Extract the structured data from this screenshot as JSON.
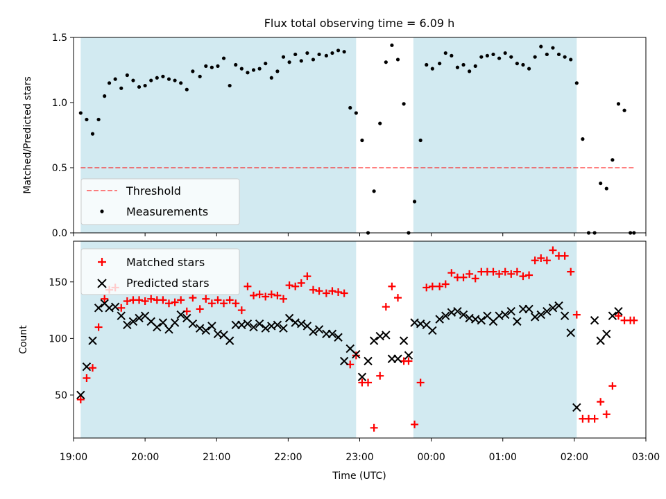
{
  "chart_data": [
    {
      "type": "scatter",
      "title": "Flux total observing time = 6.09 h",
      "ylabel": "Matched/Predicted stars",
      "xlim": [
        "19:00",
        "03:00"
      ],
      "ylim": [
        0,
        1.5
      ],
      "y_ticks": [
        "0.0",
        "0.5",
        "1.0",
        "1.5"
      ],
      "shaded_intervals": [
        [
          "19:06",
          "22:57"
        ],
        [
          "23:45",
          "02:02"
        ]
      ],
      "threshold": {
        "value": 0.5,
        "x_start": "19:06",
        "x_end": "02:50"
      },
      "legend": {
        "location": "lower-left",
        "entries": [
          "Threshold",
          "Measurements"
        ]
      },
      "series": [
        {
          "name": "Measurements",
          "x": [
            "19:06",
            "19:11",
            "19:16",
            "19:21",
            "19:26",
            "19:30",
            "19:35",
            "19:40",
            "19:45",
            "19:50",
            "19:55",
            "20:00",
            "20:05",
            "20:10",
            "20:15",
            "20:20",
            "20:25",
            "20:30",
            "20:35",
            "20:40",
            "20:46",
            "20:51",
            "20:56",
            "21:01",
            "21:06",
            "21:11",
            "21:16",
            "21:21",
            "21:26",
            "21:31",
            "21:36",
            "21:41",
            "21:46",
            "21:51",
            "21:56",
            "22:01",
            "22:06",
            "22:11",
            "22:16",
            "22:21",
            "22:26",
            "22:32",
            "22:37",
            "22:42",
            "22:47",
            "22:52",
            "22:57",
            "23:02",
            "23:07",
            "23:12",
            "23:17",
            "23:22",
            "23:27",
            "23:32",
            "23:37",
            "23:41",
            "23:46",
            "23:51",
            "23:56",
            "00:01",
            "00:07",
            "00:12",
            "00:17",
            "00:22",
            "00:27",
            "00:32",
            "00:37",
            "00:42",
            "00:47",
            "00:52",
            "00:57",
            "01:02",
            "01:07",
            "01:12",
            "01:17",
            "01:22",
            "01:27",
            "01:32",
            "01:37",
            "01:42",
            "01:47",
            "01:52",
            "01:57",
            "02:02",
            "02:07",
            "02:12",
            "02:17",
            "02:22",
            "02:27",
            "02:32",
            "02:37",
            "02:42",
            "02:47",
            "02:50"
          ],
          "y": [
            0.92,
            0.87,
            0.76,
            0.87,
            1.05,
            1.15,
            1.18,
            1.11,
            1.21,
            1.17,
            1.12,
            1.13,
            1.17,
            1.19,
            1.2,
            1.18,
            1.17,
            1.15,
            1.1,
            1.24,
            1.2,
            1.28,
            1.27,
            1.28,
            1.34,
            1.13,
            1.29,
            1.26,
            1.23,
            1.25,
            1.26,
            1.3,
            1.19,
            1.24,
            1.35,
            1.31,
            1.37,
            1.32,
            1.38,
            1.33,
            1.37,
            1.36,
            1.38,
            1.4,
            1.39,
            0.96,
            0.92,
            0.71,
            0.0,
            0.32,
            0.84,
            1.31,
            1.44,
            1.33,
            0.99,
            0.0,
            0.24,
            0.71,
            1.29,
            1.26,
            1.3,
            1.38,
            1.36,
            1.27,
            1.29,
            1.24,
            1.28,
            1.35,
            1.36,
            1.37,
            1.34,
            1.38,
            1.35,
            1.3,
            1.29,
            1.26,
            1.35,
            1.43,
            1.37,
            1.42,
            1.37,
            1.35,
            1.33,
            1.15,
            0.72,
            0.0,
            0.0,
            0.38,
            0.34,
            0.56,
            0.99,
            0.94,
            0.0,
            0.0
          ]
        }
      ]
    },
    {
      "type": "scatter",
      "xlabel": "Time (UTC)",
      "ylabel": "Count",
      "ylim": [
        12,
        186
      ],
      "y_ticks": [
        "50",
        "100",
        "150"
      ],
      "x_ticks": [
        "19:00",
        "20:00",
        "21:00",
        "22:00",
        "23:00",
        "00:00",
        "01:00",
        "02:00",
        "03:00"
      ],
      "legend": {
        "location": "upper-left",
        "entries": [
          "Matched stars",
          "Predicted stars"
        ]
      },
      "series": [
        {
          "name": "Matched stars",
          "color": "#ff0000",
          "marker": "plus",
          "x": [
            "19:06",
            "19:11",
            "19:16",
            "19:21",
            "19:26",
            "19:30",
            "19:35",
            "19:40",
            "19:45",
            "19:50",
            "19:55",
            "20:00",
            "20:05",
            "20:10",
            "20:15",
            "20:20",
            "20:25",
            "20:30",
            "20:35",
            "20:40",
            "20:46",
            "20:51",
            "20:56",
            "21:01",
            "21:06",
            "21:11",
            "21:16",
            "21:21",
            "21:26",
            "21:31",
            "21:36",
            "21:41",
            "21:46",
            "21:51",
            "21:56",
            "22:01",
            "22:06",
            "22:11",
            "22:16",
            "22:21",
            "22:26",
            "22:32",
            "22:37",
            "22:42",
            "22:47",
            "22:52",
            "22:57",
            "23:02",
            "23:07",
            "23:12",
            "23:17",
            "23:22",
            "23:27",
            "23:32",
            "23:37",
            "23:41",
            "23:46",
            "23:51",
            "23:56",
            "00:01",
            "00:07",
            "00:12",
            "00:17",
            "00:22",
            "00:27",
            "00:32",
            "00:37",
            "00:42",
            "00:47",
            "00:52",
            "00:57",
            "01:02",
            "01:07",
            "01:12",
            "01:17",
            "01:22",
            "01:27",
            "01:32",
            "01:37",
            "01:42",
            "01:47",
            "01:52",
            "01:57",
            "02:02",
            "02:07",
            "02:12",
            "02:17",
            "02:22",
            "02:27",
            "02:32",
            "02:37",
            "02:42",
            "02:47",
            "02:50"
          ],
          "y": [
            46,
            65,
            74,
            110,
            135,
            143,
            145,
            127,
            133,
            134,
            134,
            133,
            135,
            134,
            134,
            131,
            132,
            134,
            124,
            136,
            126,
            135,
            131,
            134,
            131,
            134,
            131,
            125,
            146,
            138,
            139,
            137,
            139,
            138,
            135,
            147,
            146,
            149,
            155,
            143,
            142,
            140,
            142,
            141,
            140,
            77,
            85,
            61,
            61,
            21,
            67,
            128,
            146,
            136,
            80,
            80,
            24,
            61,
            145,
            146,
            146,
            148,
            158,
            154,
            154,
            157,
            153,
            159,
            159,
            159,
            157,
            159,
            157,
            159,
            155,
            156,
            169,
            171,
            169,
            178,
            173,
            173,
            159,
            121,
            29,
            29,
            29,
            44,
            33,
            58,
            120,
            116,
            116,
            116
          ]
        },
        {
          "name": "Predicted stars",
          "color": "#000000",
          "marker": "x",
          "x": [
            "19:06",
            "19:11",
            "19:16",
            "19:21",
            "19:26",
            "19:30",
            "19:35",
            "19:40",
            "19:45",
            "19:50",
            "19:55",
            "20:00",
            "20:05",
            "20:10",
            "20:15",
            "20:20",
            "20:25",
            "20:30",
            "20:35",
            "20:40",
            "20:46",
            "20:51",
            "20:56",
            "21:01",
            "21:06",
            "21:11",
            "21:16",
            "21:21",
            "21:26",
            "21:31",
            "21:36",
            "21:41",
            "21:46",
            "21:51",
            "21:56",
            "22:01",
            "22:06",
            "22:11",
            "22:16",
            "22:21",
            "22:26",
            "22:32",
            "22:37",
            "22:42",
            "22:47",
            "22:52",
            "22:57",
            "23:02",
            "23:07",
            "23:12",
            "23:17",
            "23:22",
            "23:27",
            "23:32",
            "23:37",
            "23:41",
            "23:46",
            "23:51",
            "23:56",
            "00:01",
            "00:07",
            "00:12",
            "00:17",
            "00:22",
            "00:27",
            "00:32",
            "00:37",
            "00:42",
            "00:47",
            "00:52",
            "00:57",
            "01:02",
            "01:07",
            "01:12",
            "01:17",
            "01:22",
            "01:27",
            "01:32",
            "01:37",
            "01:42",
            "01:47",
            "01:52",
            "01:57",
            "02:02",
            "02:07",
            "02:12",
            "02:17",
            "02:22",
            "02:27",
            "02:32",
            "02:37",
            "02:42",
            "02:47"
          ],
          "y": [
            50,
            75,
            98,
            127,
            131,
            127,
            128,
            120,
            112,
            115,
            118,
            120,
            115,
            110,
            114,
            108,
            114,
            121,
            118,
            113,
            109,
            107,
            111,
            104,
            103,
            98,
            112,
            112,
            113,
            110,
            113,
            109,
            111,
            112,
            109,
            118,
            114,
            113,
            111,
            106,
            108,
            104,
            104,
            101,
            80,
            91,
            86,
            66,
            80,
            98,
            102,
            103,
            82,
            82,
            98,
            85,
            114,
            113,
            112,
            107,
            117,
            120,
            123,
            124,
            121,
            118,
            117,
            116,
            120,
            115,
            120,
            121,
            124,
            115,
            126,
            126,
            119,
            121,
            124,
            127,
            129,
            120,
            105,
            39,
            null,
            null,
            116,
            98,
            104,
            120,
            124,
            null,
            null
          ]
        }
      ]
    }
  ],
  "colors": {
    "shade": "#add8e6",
    "threshold": "#ff0000",
    "measurements": "#000000",
    "matched": "#ff0000",
    "predicted": "#000000"
  }
}
